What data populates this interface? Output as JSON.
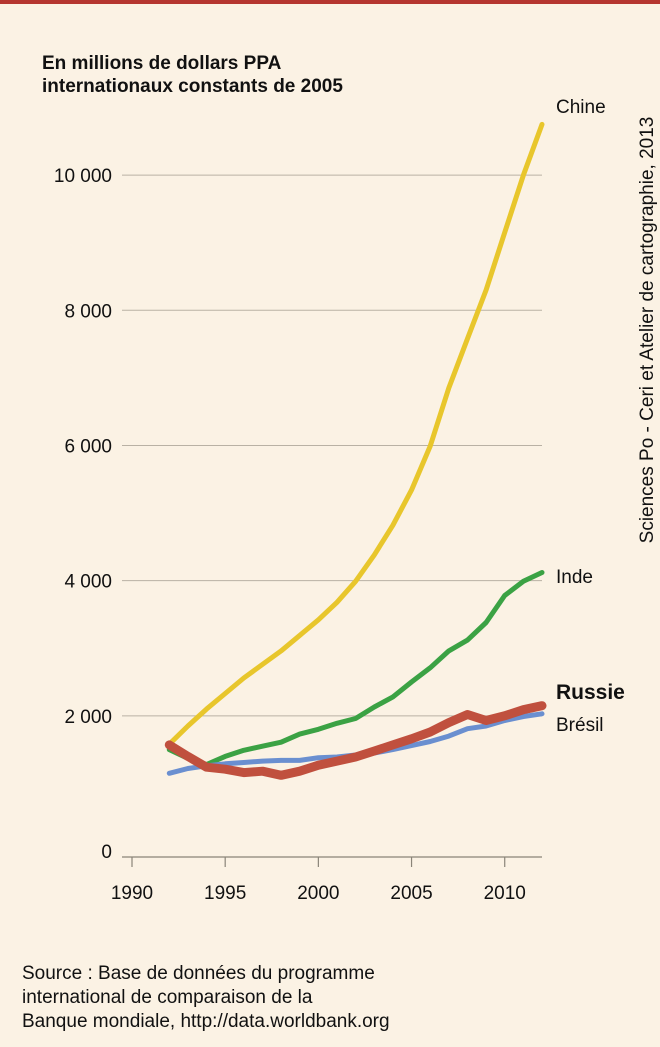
{
  "page": {
    "credit": "Sciences Po - Ceri et Atelier de cartographie, 2013",
    "source_lines": [
      "Source : Base de données du programme",
      "international de comparaison de la",
      "Banque mondiale, http://data.worldbank.org"
    ]
  },
  "chart_data": {
    "type": "line",
    "title_lines": [
      "En millions de dollars PPA",
      "internationaux constants de 2005"
    ],
    "xlabel": "",
    "ylabel": "",
    "xlim": [
      1990,
      2012
    ],
    "ylim": [
      0,
      10800
    ],
    "x_ticks": [
      1990,
      1995,
      2000,
      2005,
      2010
    ],
    "x_tick_labels": [
      "1990",
      "1995",
      "2000",
      "2005",
      "2010"
    ],
    "y_ticks": [
      0,
      2000,
      4000,
      6000,
      8000,
      10000
    ],
    "y_tick_labels": [
      "0",
      "2 000",
      "4 000",
      "6 000",
      "8 000",
      "10 000"
    ],
    "grid": true,
    "x": [
      1992,
      1993,
      1994,
      1995,
      1996,
      1997,
      1998,
      1999,
      2000,
      2001,
      2002,
      2003,
      2004,
      2005,
      2006,
      2007,
      2008,
      2009,
      2010,
      2011,
      2012
    ],
    "series": [
      {
        "name": "Chine",
        "color": "#e8c62c",
        "bold": false,
        "values": [
          1580,
          1850,
          2100,
          2330,
          2560,
          2760,
          2960,
          3190,
          3420,
          3680,
          3990,
          4380,
          4820,
          5340,
          5990,
          6850,
          7580,
          8300,
          9150,
          10000,
          10750
        ]
      },
      {
        "name": "Inde",
        "color": "#3ba244",
        "bold": false,
        "values": [
          1500,
          1370,
          1280,
          1400,
          1490,
          1550,
          1610,
          1730,
          1800,
          1890,
          1960,
          2130,
          2280,
          2500,
          2710,
          2960,
          3120,
          3380,
          3780,
          3990,
          4120
        ]
      },
      {
        "name": "Russie",
        "color": "#c0503e",
        "bold": true,
        "values": [
          1570,
          1400,
          1240,
          1210,
          1160,
          1180,
          1120,
          1180,
          1270,
          1330,
          1390,
          1480,
          1570,
          1660,
          1760,
          1900,
          2020,
          1930,
          2000,
          2090,
          2150
        ]
      },
      {
        "name": "Brésil",
        "color": "#6a8fd0",
        "bold": false,
        "values": [
          1150,
          1220,
          1260,
          1290,
          1310,
          1330,
          1340,
          1340,
          1380,
          1390,
          1420,
          1450,
          1500,
          1560,
          1620,
          1700,
          1810,
          1850,
          1930,
          1990,
          2030
        ]
      }
    ]
  }
}
